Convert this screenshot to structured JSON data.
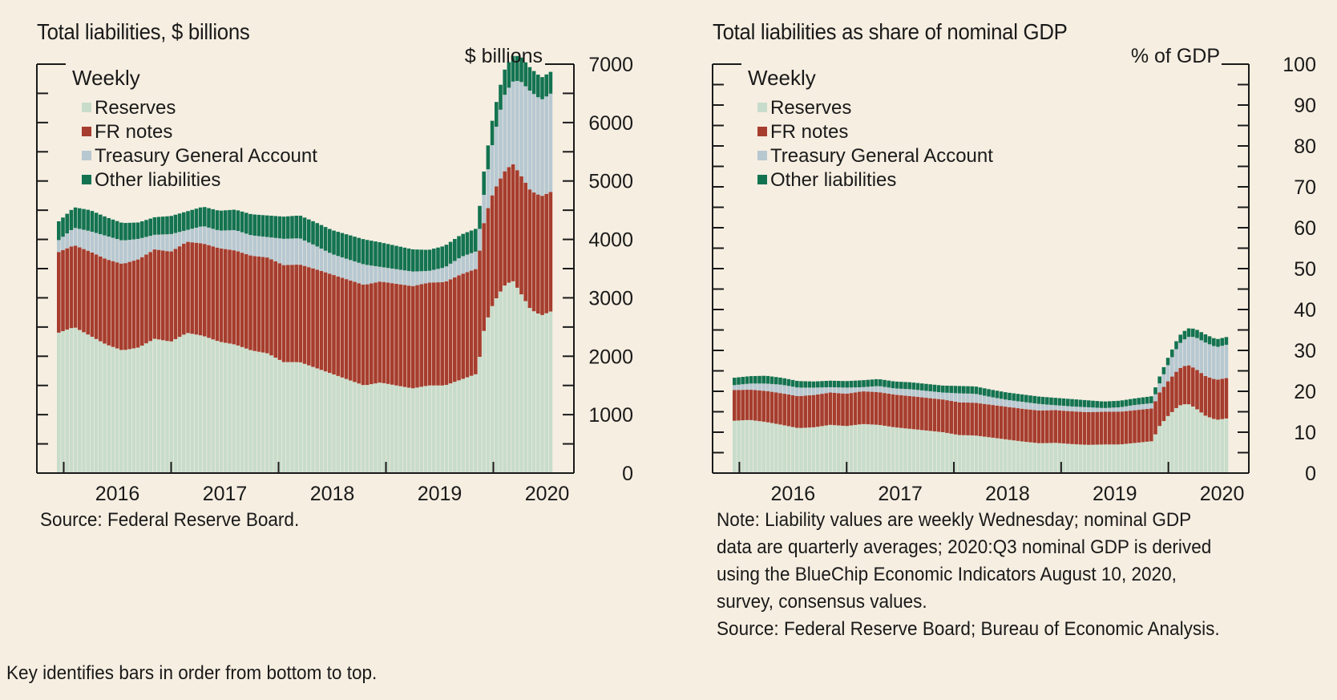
{
  "colors": {
    "background": "#f6eee1",
    "reserves": "#c8dccb",
    "fr_notes": "#a63d2e",
    "treasury_general_account": "#b7c8d1",
    "other_liabilities": "#137351",
    "axis": "#1a1a1a"
  },
  "footer_note": "Key identifies bars in order from bottom to top.",
  "left_panel": {
    "source": "Source: Federal Reserve Board."
  },
  "right_panel": {
    "note_lines": [
      "Note: Liability values are weekly Wednesday; nominal GDP",
      "data are quarterly averages; 2020:Q3 nominal GDP is derived",
      "using the BlueChip Economic Indicators  August 10, 2020,",
      "survey, consensus values.",
      "Source: Federal Reserve Board; Bureau of Economic Analysis."
    ]
  },
  "chart_data": [
    {
      "type": "bar",
      "stacked": true,
      "frequency": "weekly",
      "title": "Total liabilities, $ billions",
      "ylabel": "$ billions",
      "legend_title": "Weekly",
      "legend_position": "top-left",
      "ylim": [
        0,
        7000
      ],
      "yticks": [
        0,
        1000,
        2000,
        3000,
        4000,
        5000,
        6000,
        7000
      ],
      "y_minor_step": 500,
      "xlim": [
        2015.75,
        2020.75
      ],
      "x_tick_labels": [
        "2016",
        "2017",
        "2018",
        "2019",
        "2020"
      ],
      "x_tick_positions": [
        2016,
        2017,
        2018,
        2019,
        2020
      ],
      "grid": false,
      "x": [
        2015.95,
        2016.1,
        2016.25,
        2016.4,
        2016.55,
        2016.7,
        2016.85,
        2017.0,
        2017.15,
        2017.3,
        2017.45,
        2017.6,
        2017.75,
        2017.9,
        2018.05,
        2018.2,
        2018.35,
        2018.5,
        2018.65,
        2018.8,
        2018.95,
        2019.1,
        2019.25,
        2019.4,
        2019.55,
        2019.7,
        2019.85,
        2019.92,
        2020.0,
        2020.1,
        2020.18,
        2020.25,
        2020.35,
        2020.45,
        2020.58
      ],
      "series": [
        {
          "name": "Reserves",
          "values": [
            2400,
            2500,
            2350,
            2200,
            2100,
            2150,
            2300,
            2250,
            2400,
            2350,
            2250,
            2200,
            2100,
            2050,
            1900,
            1900,
            1800,
            1700,
            1600,
            1500,
            1550,
            1500,
            1450,
            1500,
            1500,
            1600,
            1700,
            2500,
            2900,
            3200,
            3300,
            3100,
            2800,
            2700,
            2800
          ]
        },
        {
          "name": "FR notes",
          "values": [
            1380,
            1400,
            1440,
            1460,
            1480,
            1510,
            1530,
            1540,
            1560,
            1580,
            1600,
            1610,
            1620,
            1640,
            1660,
            1670,
            1690,
            1700,
            1710,
            1720,
            1730,
            1740,
            1750,
            1760,
            1770,
            1800,
            1800,
            1850,
            1900,
            1950,
            2000,
            2020,
            2030,
            2040,
            2050
          ]
        },
        {
          "name": "Treasury General Account",
          "values": [
            200,
            300,
            350,
            400,
            400,
            350,
            250,
            300,
            200,
            300,
            300,
            350,
            350,
            350,
            450,
            450,
            400,
            350,
            350,
            350,
            250,
            250,
            250,
            200,
            250,
            300,
            300,
            500,
            900,
            1300,
            1400,
            1600,
            1700,
            1650,
            1700
          ]
        },
        {
          "name": "Other liabilities",
          "values": [
            320,
            350,
            360,
            320,
            300,
            280,
            300,
            310,
            320,
            330,
            340,
            350,
            360,
            370,
            380,
            390,
            400,
            410,
            420,
            430,
            420,
            400,
            380,
            360,
            370,
            380,
            390,
            400,
            420,
            430,
            440,
            420,
            400,
            380,
            370
          ]
        }
      ]
    },
    {
      "type": "bar",
      "stacked": true,
      "frequency": "weekly",
      "title": "Total liabilities as share of nominal GDP",
      "ylabel": "% of GDP",
      "legend_title": "Weekly",
      "legend_position": "top-left",
      "ylim": [
        0,
        100
      ],
      "yticks": [
        0,
        10,
        20,
        30,
        40,
        50,
        60,
        70,
        80,
        90,
        100
      ],
      "y_minor_step": 5,
      "xlim": [
        2015.75,
        2020.75
      ],
      "x_tick_labels": [
        "2016",
        "2017",
        "2018",
        "2019",
        "2020"
      ],
      "x_tick_positions": [
        2016,
        2017,
        2018,
        2019,
        2020
      ],
      "grid": false,
      "x": [
        2015.95,
        2016.1,
        2016.25,
        2016.4,
        2016.55,
        2016.7,
        2016.85,
        2017.0,
        2017.15,
        2017.3,
        2017.45,
        2017.6,
        2017.75,
        2017.9,
        2018.05,
        2018.2,
        2018.35,
        2018.5,
        2018.65,
        2018.8,
        2018.95,
        2019.1,
        2019.25,
        2019.4,
        2019.55,
        2019.7,
        2019.85,
        2019.92,
        2020.0,
        2020.1,
        2020.18,
        2020.25,
        2020.35,
        2020.45,
        2020.58
      ],
      "series": [
        {
          "name": "Reserves",
          "values": [
            12.8,
            13.0,
            12.5,
            11.8,
            11.0,
            11.2,
            11.8,
            11.5,
            12.0,
            11.8,
            11.2,
            10.8,
            10.4,
            10.0,
            9.3,
            9.2,
            8.7,
            8.2,
            7.7,
            7.3,
            7.4,
            7.1,
            6.9,
            7.0,
            7.0,
            7.4,
            7.8,
            11.5,
            14.0,
            16.5,
            17.0,
            16.0,
            14.0,
            13.0,
            13.5
          ]
        },
        {
          "name": "FR notes",
          "values": [
            7.5,
            7.4,
            7.6,
            7.7,
            7.8,
            7.9,
            7.9,
            7.9,
            8.0,
            8.0,
            8.0,
            8.0,
            8.0,
            8.0,
            8.0,
            8.0,
            8.0,
            8.0,
            8.0,
            8.0,
            8.0,
            8.0,
            8.0,
            8.0,
            8.0,
            8.0,
            8.0,
            8.2,
            8.5,
            9.0,
            9.5,
            9.6,
            9.7,
            9.8,
            9.9
          ]
        },
        {
          "name": "Treasury General Account",
          "values": [
            1.2,
            1.5,
            1.8,
            2.1,
            2.1,
            1.8,
            1.3,
            1.5,
            1.0,
            1.5,
            1.5,
            1.7,
            1.7,
            1.7,
            2.2,
            2.2,
            1.9,
            1.7,
            1.7,
            1.6,
            1.2,
            1.2,
            1.2,
            0.9,
            1.1,
            1.3,
            1.3,
            2.2,
            4.0,
            6.0,
            6.8,
            7.7,
            8.2,
            8.0,
            8.2
          ]
        },
        {
          "name": "Other liabilities",
          "values": [
            1.8,
            1.8,
            1.9,
            1.7,
            1.6,
            1.5,
            1.6,
            1.6,
            1.7,
            1.7,
            1.7,
            1.7,
            1.7,
            1.7,
            1.8,
            1.8,
            1.8,
            1.8,
            1.8,
            1.8,
            1.8,
            1.8,
            1.7,
            1.6,
            1.6,
            1.6,
            1.7,
            1.7,
            1.8,
            2.0,
            2.1,
            2.0,
            2.0,
            1.9,
            1.9
          ]
        }
      ]
    }
  ]
}
